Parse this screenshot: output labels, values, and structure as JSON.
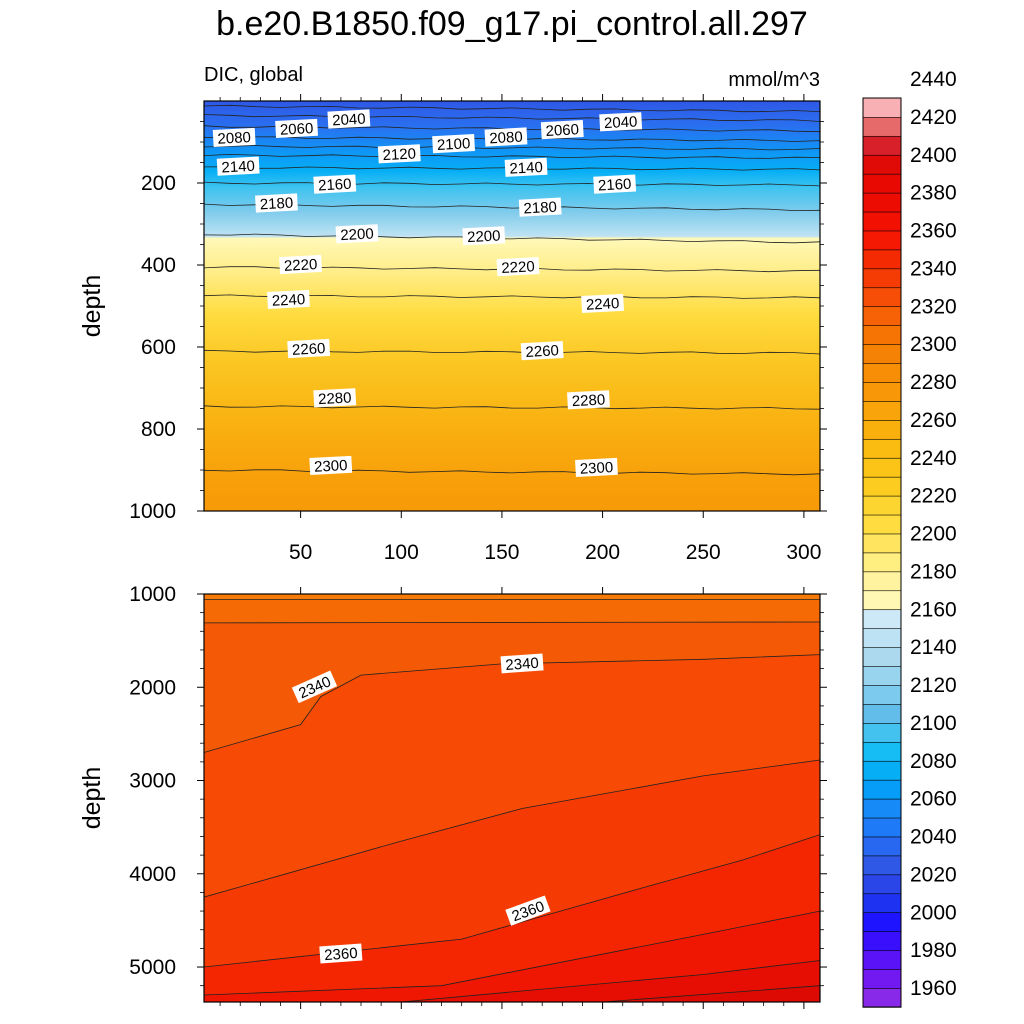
{
  "title": "b.e20.B1850.f09_g17.pi_control.all.297",
  "left_label": "DIC, global",
  "right_label": "mmol/m^3",
  "chart_data": [
    {
      "type": "heatmap",
      "panel": "upper",
      "ylabel": "depth",
      "x_ticks": [
        50,
        100,
        150,
        200,
        250,
        300
      ],
      "y_ticks": [
        200,
        400,
        600,
        800,
        1000
      ],
      "xlim": [
        2,
        308
      ],
      "ylim": [
        0,
        1000
      ],
      "y_reversed": true,
      "contour_isolines": [
        {
          "value": 2020,
          "depth_left": 12,
          "depth_right": 26
        },
        {
          "value": 2040,
          "depth_left": 35,
          "depth_right": 48
        },
        {
          "value": 2060,
          "depth_left": 62,
          "depth_right": 73
        },
        {
          "value": 2080,
          "depth_left": 88,
          "depth_right": 97
        },
        {
          "value": 2100,
          "depth_left": 110,
          "depth_right": 118
        },
        {
          "value": 2120,
          "depth_left": 132,
          "depth_right": 139
        },
        {
          "value": 2140,
          "depth_left": 162,
          "depth_right": 167
        },
        {
          "value": 2160,
          "depth_left": 200,
          "depth_right": 205
        },
        {
          "value": 2180,
          "depth_left": 252,
          "depth_right": 266
        },
        {
          "value": 2200,
          "depth_left": 325,
          "depth_right": 345
        },
        {
          "value": 2220,
          "depth_left": 405,
          "depth_right": 415
        },
        {
          "value": 2240,
          "depth_left": 475,
          "depth_right": 480
        },
        {
          "value": 2260,
          "depth_left": 610,
          "depth_right": 615
        },
        {
          "value": 2280,
          "depth_left": 745,
          "depth_right": 750
        },
        {
          "value": 2300,
          "depth_left": 900,
          "depth_right": 910
        }
      ],
      "contour_labels": [
        {
          "text": "2040",
          "x": 74,
          "depth": 45
        },
        {
          "text": "2060",
          "x": 48,
          "depth": 68
        },
        {
          "text": "2080",
          "x": 17,
          "depth": 90
        },
        {
          "text": "2040",
          "x": 209,
          "depth": 52
        },
        {
          "text": "2060",
          "x": 180,
          "depth": 71
        },
        {
          "text": "2080",
          "x": 152,
          "depth": 89
        },
        {
          "text": "2100",
          "x": 126,
          "depth": 105
        },
        {
          "text": "2120",
          "x": 99,
          "depth": 130
        },
        {
          "text": "2140",
          "x": 19,
          "depth": 160
        },
        {
          "text": "2160",
          "x": 67,
          "depth": 204
        },
        {
          "text": "2140",
          "x": 162,
          "depth": 163
        },
        {
          "text": "2160",
          "x": 206,
          "depth": 204
        },
        {
          "text": "2180",
          "x": 38,
          "depth": 250
        },
        {
          "text": "2180",
          "x": 169,
          "depth": 260
        },
        {
          "text": "2200",
          "x": 78,
          "depth": 325
        },
        {
          "text": "2200",
          "x": 141,
          "depth": 330
        },
        {
          "text": "2220",
          "x": 50,
          "depth": 400
        },
        {
          "text": "2220",
          "x": 158,
          "depth": 405
        },
        {
          "text": "2240",
          "x": 44,
          "depth": 485
        },
        {
          "text": "2240",
          "x": 200,
          "depth": 495
        },
        {
          "text": "2260",
          "x": 54,
          "depth": 605
        },
        {
          "text": "2260",
          "x": 170,
          "depth": 610
        },
        {
          "text": "2280",
          "x": 67,
          "depth": 725
        },
        {
          "text": "2280",
          "x": 193,
          "depth": 730
        },
        {
          "text": "2300",
          "x": 65,
          "depth": 890
        },
        {
          "text": "2300",
          "x": 197,
          "depth": 895
        }
      ]
    },
    {
      "type": "heatmap",
      "panel": "lower",
      "ylabel": "depth",
      "y_ticks": [
        1000,
        2000,
        3000,
        4000,
        5000
      ],
      "xlim": [
        2,
        308
      ],
      "ylim": [
        1000,
        5375
      ],
      "y_reversed": true,
      "contour_isolines": [
        {
          "value": 2330,
          "depths": [
            [
              2,
              1060
            ],
            [
              308,
              1060
            ]
          ]
        },
        {
          "value": 2335,
          "depths": [
            [
              2,
              1310
            ],
            [
              308,
              1300
            ]
          ]
        },
        {
          "value": 2340,
          "depths": [
            [
              2,
              2700
            ],
            [
              50,
              2400
            ],
            [
              60,
              2100
            ],
            [
              80,
              1870
            ],
            [
              150,
              1750
            ],
            [
              250,
              1700
            ],
            [
              308,
              1650
            ]
          ]
        },
        {
          "value": 2350,
          "depths": [
            [
              2,
              4250
            ],
            [
              100,
              3650
            ],
            [
              160,
              3300
            ],
            [
              250,
              2950
            ],
            [
              308,
              2780
            ]
          ]
        },
        {
          "value": 2360,
          "depths": [
            [
              2,
              5000
            ],
            [
              130,
              4700
            ],
            [
              220,
              4150
            ],
            [
              270,
              3850
            ],
            [
              308,
              3580
            ]
          ]
        },
        {
          "value": 2370,
          "depths": [
            [
              2,
              5300
            ],
            [
              120,
              5200
            ],
            [
              250,
              4650
            ],
            [
              308,
              4400
            ]
          ]
        },
        {
          "value": 2380,
          "depths": [
            [
              100,
              5375
            ],
            [
              250,
              5080
            ],
            [
              308,
              4930
            ]
          ]
        },
        {
          "value": 2390,
          "depths": [
            [
              200,
              5375
            ],
            [
              308,
              5200
            ]
          ]
        }
      ],
      "contour_labels": [
        {
          "text": "2340",
          "x": 57,
          "depth": 2000
        },
        {
          "text": "2340",
          "x": 160,
          "depth": 1750
        },
        {
          "text": "2360",
          "x": 163,
          "depth": 4400
        },
        {
          "text": "2360",
          "x": 70,
          "depth": 4860
        }
      ]
    },
    {
      "type": "colorbar",
      "levels": [
        1960,
        1980,
        2000,
        2020,
        2040,
        2060,
        2080,
        2100,
        2120,
        2140,
        2160,
        2180,
        2200,
        2220,
        2240,
        2260,
        2280,
        2300,
        2320,
        2340,
        2360,
        2380,
        2400,
        2420,
        2440
      ],
      "labels": [
        "1960",
        "1980",
        "2000",
        "2020",
        "2040",
        "2060",
        "2080",
        "2100",
        "2120",
        "2140",
        "2160",
        "2180",
        "2200",
        "2220",
        "2240",
        "2260",
        "2280",
        "2300",
        "2320",
        "2340",
        "2360",
        "2380",
        "2400",
        "2420",
        "2440"
      ],
      "colors": [
        "#8828e8",
        "#7218f0",
        "#5a12f6",
        "#3a10fc",
        "#1e14ff",
        "#1e32f2",
        "#2a46e8",
        "#2f58e6",
        "#2868f0",
        "#1f7af7",
        "#168af7",
        "#069df8",
        "#06aef6",
        "#16bdf5",
        "#43c1ef",
        "#62bdea",
        "#7ccaee",
        "#99d4ef",
        "#add9ef",
        "#bde2f3",
        "#cde9f7",
        "#fff8b4",
        "#fff3a0",
        "#ffee80",
        "#ffe55f",
        "#ffdc40",
        "#fcd530",
        "#fccd20",
        "#fbc416",
        "#fbbc12",
        "#f9b00c",
        "#f9a40a",
        "#f89808",
        "#f78e06",
        "#f68205",
        "#f57404",
        "#f66205",
        "#f64e06",
        "#f43c04",
        "#f42a02",
        "#f51802",
        "#f21002",
        "#ec0c02",
        "#e80a02",
        "#e00b06",
        "#d8202a",
        "#e66a6a",
        "#f8b0b4"
      ]
    }
  ]
}
